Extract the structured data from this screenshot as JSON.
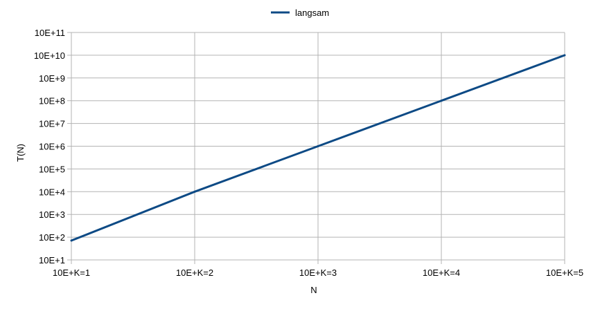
{
  "chart_data": {
    "type": "line",
    "title": "",
    "xlabel": "N",
    "ylabel": "T(N)",
    "legend_position": "top-center",
    "grid": true,
    "y_scale": "log",
    "x_categories": [
      "10E+K=1",
      "10E+K=2",
      "10E+K=3",
      "10E+K=4",
      "10E+K=5"
    ],
    "x": [
      1,
      2,
      3,
      4,
      5
    ],
    "y_ticks": [
      {
        "exp": 1,
        "label": "10E+1"
      },
      {
        "exp": 2,
        "label": "10E+2"
      },
      {
        "exp": 3,
        "label": "10E+3"
      },
      {
        "exp": 4,
        "label": "10E+4"
      },
      {
        "exp": 5,
        "label": "10E+5"
      },
      {
        "exp": 6,
        "label": "10E+6"
      },
      {
        "exp": 7,
        "label": "10E+7"
      },
      {
        "exp": 8,
        "label": "10E+8"
      },
      {
        "exp": 9,
        "label": "10E+9"
      },
      {
        "exp": 10,
        "label": "10E+10"
      },
      {
        "exp": 11,
        "label": "10E+11"
      }
    ],
    "ylim_exp": [
      1,
      11
    ],
    "series": [
      {
        "name": "langsam",
        "color": "#0d4a85",
        "y_exp": [
          1.85,
          4.0,
          6.0,
          8.0,
          10.0
        ]
      }
    ],
    "colors": {
      "grid": "#b3b3b3",
      "axis": "#b3b3b3"
    }
  }
}
